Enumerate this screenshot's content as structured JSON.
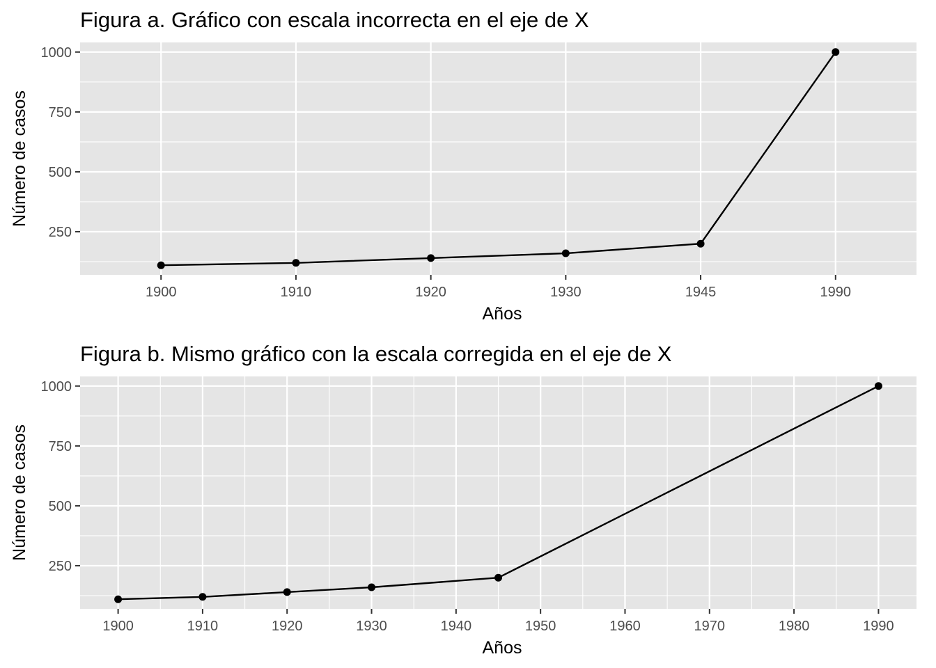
{
  "chart_data": [
    {
      "type": "line",
      "title": "Figura a. Gráfico con escala incorrecta en el eje de X",
      "xlabel": "Años",
      "ylabel": "Número de casos",
      "x_scale": "categorical",
      "categories": [
        "1900",
        "1910",
        "1920",
        "1930",
        "1945",
        "1990"
      ],
      "values": [
        110,
        120,
        140,
        160,
        200,
        1000
      ],
      "y_ticks": [
        250,
        500,
        750,
        1000
      ],
      "ylim": [
        70,
        1040
      ],
      "grid": true,
      "point_markers": true,
      "colors": {
        "panel": "#e5e5e5",
        "grid": "#ffffff",
        "line": "#000000"
      }
    },
    {
      "type": "line",
      "title": "Figura b. Mismo gráfico con la escala corregida en el eje de X",
      "xlabel": "Años",
      "ylabel": "Número de casos",
      "x_scale": "continuous",
      "x": [
        1900,
        1910,
        1920,
        1930,
        1945,
        1990
      ],
      "values": [
        110,
        120,
        140,
        160,
        200,
        1000
      ],
      "x_ticks": [
        1900,
        1910,
        1920,
        1930,
        1940,
        1950,
        1960,
        1970,
        1980,
        1990
      ],
      "y_ticks": [
        250,
        500,
        750,
        1000
      ],
      "xlim": [
        1895.5,
        1994.5
      ],
      "ylim": [
        70,
        1040
      ],
      "grid": true,
      "point_markers": true,
      "colors": {
        "panel": "#e5e5e5",
        "grid": "#ffffff",
        "line": "#000000"
      }
    }
  ]
}
